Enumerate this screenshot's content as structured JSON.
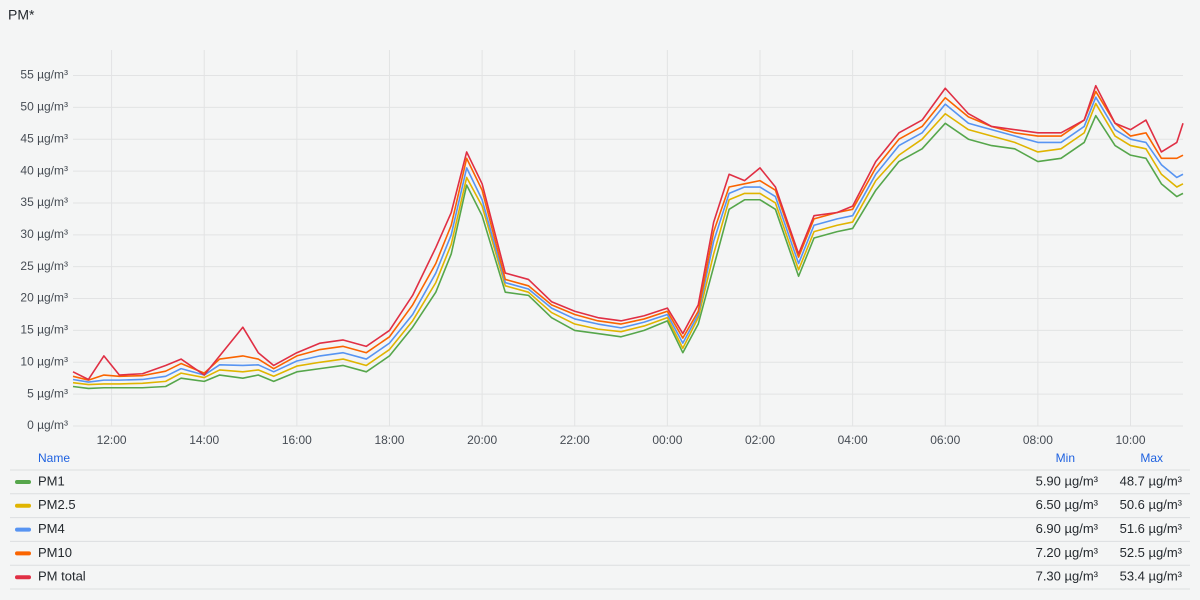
{
  "chart_data": {
    "type": "line",
    "title": "PM*",
    "x": [
      "11:10",
      "11:30",
      "11:50",
      "12:10",
      "12:40",
      "13:10",
      "13:30",
      "14:00",
      "14:20",
      "14:50",
      "15:10",
      "15:30",
      "16:00",
      "16:30",
      "17:00",
      "17:30",
      "18:00",
      "18:30",
      "19:00",
      "19:20",
      "19:40",
      "20:00",
      "20:30",
      "21:00",
      "21:30",
      "22:00",
      "22:30",
      "23:00",
      "23:30",
      "00:00",
      "00:20",
      "00:40",
      "01:00",
      "01:20",
      "01:40",
      "02:00",
      "02:20",
      "02:50",
      "03:10",
      "03:40",
      "04:00",
      "04:30",
      "05:00",
      "05:30",
      "06:00",
      "06:30",
      "07:00",
      "07:30",
      "08:00",
      "08:30",
      "09:00",
      "09:15",
      "09:40",
      "10:00",
      "10:20",
      "10:40",
      "11:00",
      "11:08"
    ],
    "xlim": [
      "11:10",
      "11:08"
    ],
    "xticks": [
      "12:00",
      "14:00",
      "16:00",
      "18:00",
      "20:00",
      "22:00",
      "00:00",
      "02:00",
      "04:00",
      "06:00",
      "08:00",
      "10:00"
    ],
    "ylim": [
      0,
      59
    ],
    "yticks": [
      {
        "value": 0,
        "label": "0 µg/m³"
      },
      {
        "value": 5,
        "label": "5 µg/m³"
      },
      {
        "value": 10,
        "label": "10 µg/m³"
      },
      {
        "value": 15,
        "label": "15 µg/m³"
      },
      {
        "value": 20,
        "label": "20 µg/m³"
      },
      {
        "value": 25,
        "label": "25 µg/m³"
      },
      {
        "value": 30,
        "label": "30 µg/m³"
      },
      {
        "value": 35,
        "label": "35 µg/m³"
      },
      {
        "value": 40,
        "label": "40 µg/m³"
      },
      {
        "value": 45,
        "label": "45 µg/m³"
      },
      {
        "value": 50,
        "label": "50 µg/m³"
      },
      {
        "value": 55,
        "label": "55 µg/m³"
      }
    ],
    "grid": true,
    "legend_headers": [
      "Name",
      "Min",
      "Max"
    ],
    "series": [
      {
        "name": "PM1",
        "color": "#56a64b",
        "min": {
          "value": 5.9,
          "label": "5.90 µg/m³"
        },
        "max": {
          "value": 48.7,
          "label": "48.7 µg/m³"
        },
        "values": [
          6.2,
          5.9,
          6.0,
          6.0,
          6.0,
          6.2,
          7.5,
          7.0,
          8.0,
          7.5,
          8.0,
          7.0,
          8.5,
          9.0,
          9.5,
          8.5,
          11.0,
          15.5,
          21.0,
          27.0,
          37.8,
          33.0,
          21.0,
          20.5,
          17.0,
          15.0,
          14.5,
          14.0,
          15.0,
          16.5,
          11.5,
          16.0,
          25.0,
          34.0,
          35.5,
          35.5,
          34.0,
          23.5,
          29.5,
          30.5,
          31.0,
          37.0,
          41.5,
          43.5,
          47.5,
          45.0,
          44.0,
          43.5,
          41.5,
          42.0,
          44.5,
          48.7,
          44.0,
          42.5,
          42.0,
          38.0,
          36.0,
          36.5
        ]
      },
      {
        "name": "PM2.5",
        "color": "#e0b400",
        "min": {
          "value": 6.5,
          "label": "6.50 µg/m³"
        },
        "max": {
          "value": 50.6,
          "label": "50.6 µg/m³"
        },
        "values": [
          6.8,
          6.5,
          6.6,
          6.6,
          6.7,
          7.0,
          8.3,
          7.6,
          8.8,
          8.5,
          8.8,
          7.8,
          9.4,
          10.0,
          10.5,
          9.5,
          12.0,
          16.5,
          22.5,
          28.5,
          39.0,
          34.5,
          22.0,
          21.0,
          17.8,
          16.0,
          15.2,
          14.8,
          15.7,
          17.0,
          12.2,
          17.0,
          27.0,
          35.5,
          36.5,
          36.5,
          35.0,
          24.5,
          30.5,
          31.5,
          32.0,
          38.5,
          42.5,
          45.0,
          49.0,
          46.5,
          45.5,
          44.5,
          43.0,
          43.5,
          46.0,
          50.6,
          45.5,
          44.0,
          43.5,
          39.5,
          37.5,
          38.0
        ]
      },
      {
        "name": "PM4",
        "color": "#5794f2",
        "min": {
          "value": 6.9,
          "label": "6.90 µg/m³"
        },
        "max": {
          "value": 51.6,
          "label": "51.6 µg/m³"
        },
        "values": [
          7.3,
          6.9,
          7.2,
          7.2,
          7.3,
          7.8,
          9.0,
          8.0,
          9.6,
          9.5,
          9.6,
          8.5,
          10.2,
          11.0,
          11.5,
          10.5,
          13.0,
          17.5,
          24.0,
          30.0,
          40.5,
          35.5,
          22.5,
          21.5,
          18.5,
          16.8,
          16.0,
          15.4,
          16.3,
          17.5,
          13.0,
          17.5,
          29.0,
          36.5,
          37.5,
          37.5,
          36.0,
          25.5,
          31.5,
          32.5,
          33.0,
          39.5,
          44.0,
          46.0,
          50.5,
          47.5,
          46.5,
          45.5,
          44.5,
          44.5,
          47.0,
          51.6,
          46.5,
          45.0,
          44.5,
          41.0,
          39.0,
          39.5
        ]
      },
      {
        "name": "PM10",
        "color": "#fa6400",
        "min": {
          "value": 7.2,
          "label": "7.20 µg/m³"
        },
        "max": {
          "value": 52.5,
          "label": "52.5 µg/m³"
        },
        "values": [
          7.8,
          7.2,
          8.0,
          7.8,
          7.9,
          8.6,
          9.8,
          8.3,
          10.5,
          11.0,
          10.5,
          9.0,
          11.0,
          12.0,
          12.5,
          11.5,
          14.0,
          19.0,
          25.5,
          31.5,
          42.0,
          37.0,
          23.0,
          22.0,
          19.0,
          17.5,
          16.5,
          16.0,
          16.8,
          18.0,
          13.8,
          18.0,
          30.5,
          37.5,
          38.0,
          38.5,
          37.0,
          26.5,
          32.5,
          33.5,
          34.0,
          40.5,
          45.0,
          47.0,
          51.5,
          48.5,
          47.0,
          46.0,
          45.5,
          45.5,
          48.0,
          52.5,
          47.5,
          45.5,
          46.0,
          42.0,
          42.0,
          42.5
        ]
      },
      {
        "name": "PM total",
        "color": "#e02f44",
        "min": {
          "value": 7.3,
          "label": "7.30 µg/m³"
        },
        "max": {
          "value": 53.4,
          "label": "53.4 µg/m³"
        },
        "values": [
          8.5,
          7.3,
          11.0,
          8.0,
          8.2,
          9.5,
          10.5,
          8.0,
          11.0,
          15.5,
          11.5,
          9.5,
          11.5,
          13.0,
          13.5,
          12.5,
          15.0,
          20.5,
          28.0,
          33.5,
          43.0,
          38.0,
          24.0,
          23.0,
          19.5,
          18.0,
          17.0,
          16.5,
          17.3,
          18.5,
          14.5,
          19.0,
          32.0,
          39.5,
          38.5,
          40.5,
          37.5,
          27.0,
          33.0,
          33.5,
          34.5,
          41.5,
          46.0,
          48.0,
          53.0,
          49.0,
          47.0,
          46.5,
          46.0,
          46.0,
          48.0,
          53.4,
          47.5,
          46.5,
          48.0,
          43.0,
          44.5,
          47.5
        ]
      }
    ]
  }
}
